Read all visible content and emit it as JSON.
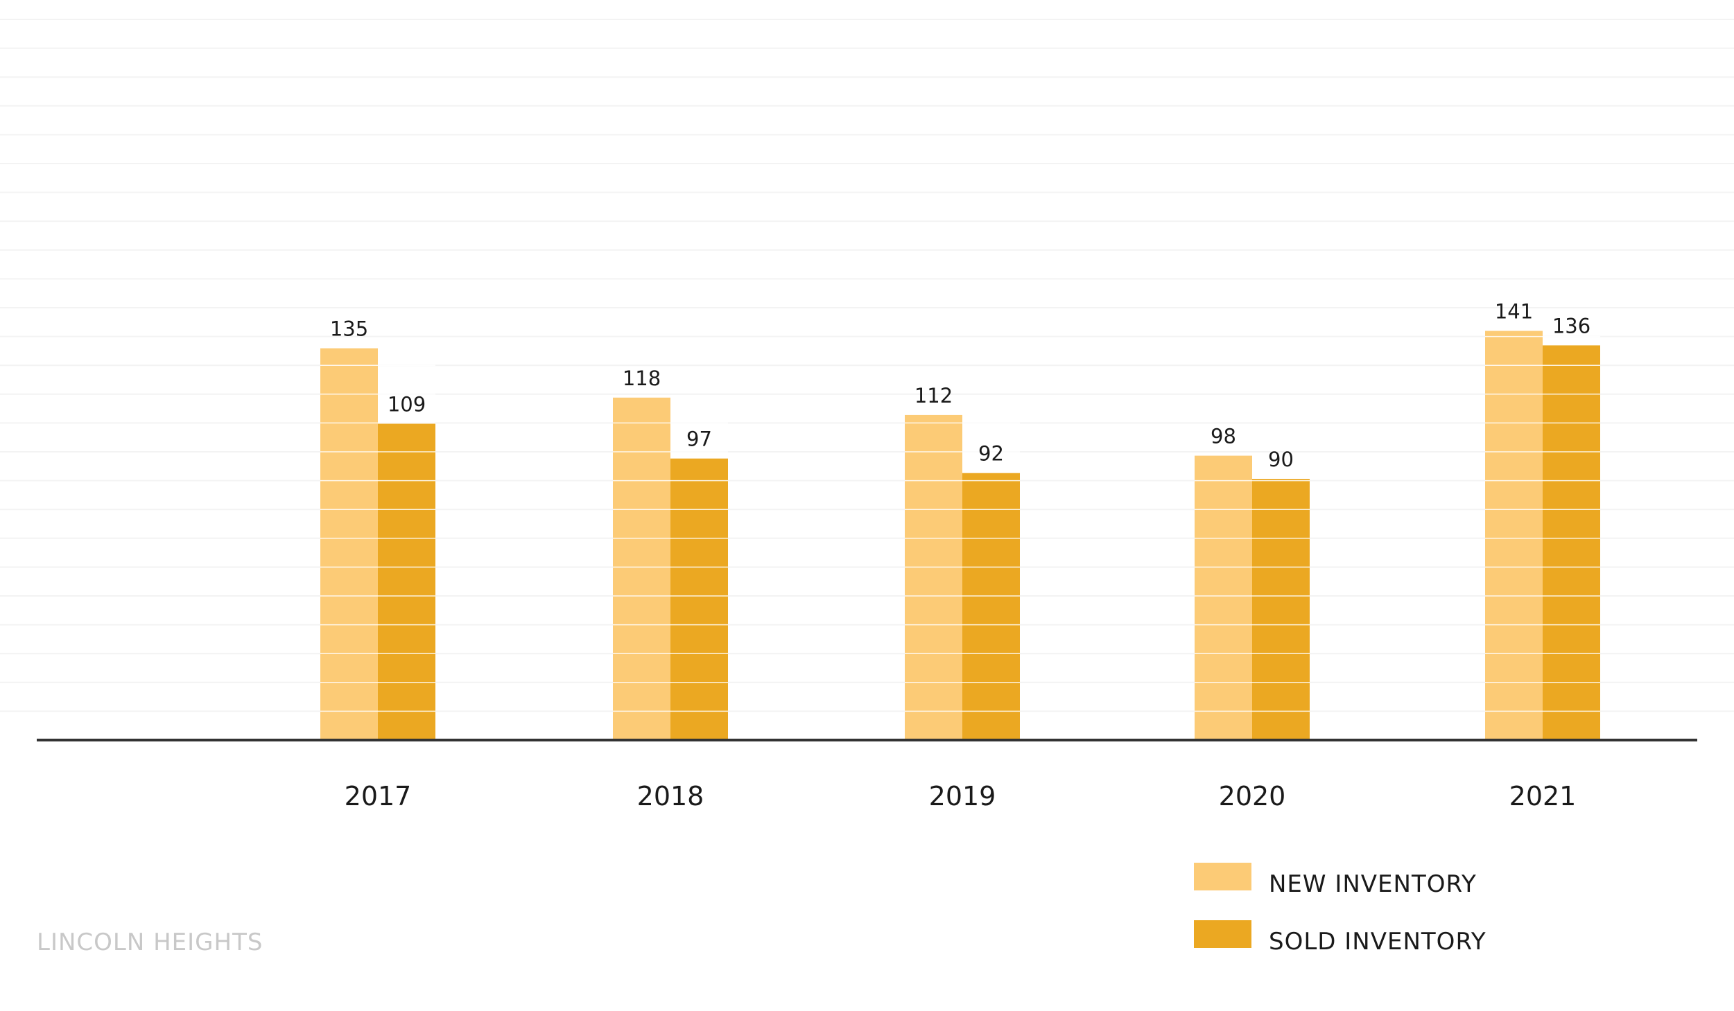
{
  "footer": {
    "location_label": "LINCOLN HEIGHTS"
  },
  "colors": {
    "new_inventory": "#FCCB76",
    "sold_inventory": "#EBA822",
    "baseline": "#333333",
    "gridline": "#f3f3f3",
    "bar_stripe": "#ffffff",
    "footer_text": "#c8c8c8"
  },
  "chart_data": {
    "type": "bar",
    "title": "",
    "xlabel": "",
    "ylabel": "",
    "ylim": [
      0,
      255
    ],
    "grid": true,
    "legend_position": "bottom-right",
    "categories": [
      "2017",
      "2018",
      "2019",
      "2020",
      "2021"
    ],
    "series": [
      {
        "name": "NEW INVENTORY",
        "values": [
          135,
          118,
          112,
          98,
          141
        ]
      },
      {
        "name": "SOLD INVENTORY",
        "values": [
          109,
          97,
          92,
          90,
          136
        ]
      }
    ]
  }
}
